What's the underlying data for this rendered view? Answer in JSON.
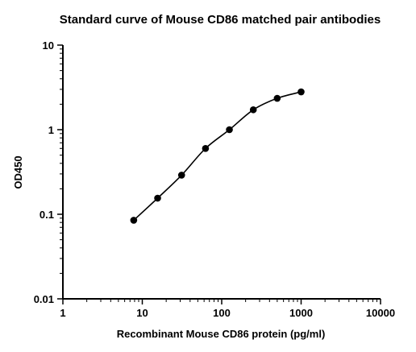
{
  "chart_data": {
    "type": "scatter",
    "title": "Standard curve of Mouse CD86 matched pair antibodies",
    "xlabel": "Recombinant Mouse CD86 protein (pg/ml)",
    "ylabel": "OD450",
    "xscale": "log",
    "yscale": "log",
    "xlim": [
      1,
      10000
    ],
    "ylim": [
      0.01,
      10
    ],
    "xticks": [
      "1",
      "10",
      "100",
      "1000",
      "10000"
    ],
    "yticks": [
      "0.01",
      "0.1",
      "1",
      "10"
    ],
    "grid": false,
    "series": [
      {
        "x": [
          7.8,
          15.6,
          31.25,
          62.5,
          125,
          250,
          500,
          1000
        ],
        "y": [
          0.085,
          0.155,
          0.29,
          0.6,
          1.0,
          1.72,
          2.35,
          2.8
        ],
        "marker": "circle",
        "fit_line": true
      }
    ],
    "colors": {
      "points": "#000000",
      "line": "#000000"
    }
  }
}
